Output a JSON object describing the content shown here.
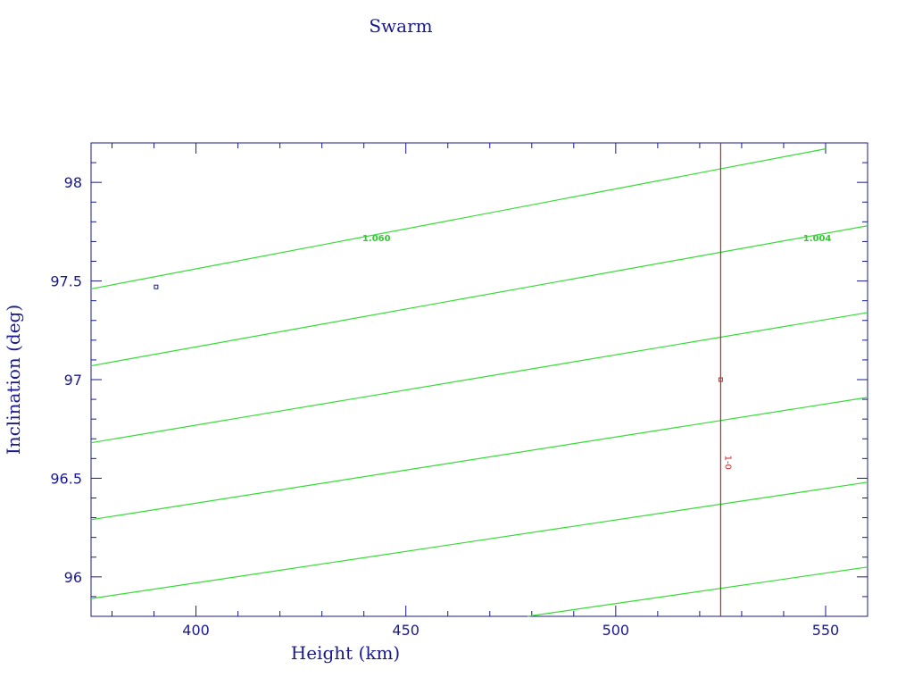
{
  "colors": {
    "axis": "#1a1a8c",
    "contour": "#33dd33",
    "reference": "#cc2222",
    "marker": "#1a1a8c"
  },
  "chart_data": {
    "type": "line",
    "title": "Swarm",
    "xlabel": "Height (km)",
    "ylabel": "Inclination (deg)",
    "xlim": [
      375,
      560
    ],
    "ylim": [
      95.8,
      98.2
    ],
    "xticks": [
      400,
      450,
      500,
      550
    ],
    "yticks": [
      96,
      96.5,
      97,
      97.5,
      98
    ],
    "x_tick_labels": [
      "400",
      "450",
      "500",
      "550"
    ],
    "y_tick_labels": [
      "96",
      "96.5",
      "97",
      "97.5",
      "98"
    ],
    "grid": false,
    "series": [
      {
        "x": [
          375,
          550
        ],
        "y": [
          97.46,
          98.17
        ],
        "label_text": "1.060",
        "label_at": [
          443,
          97.72
        ]
      },
      {
        "x": [
          375,
          560
        ],
        "y": [
          97.07,
          97.78
        ],
        "label_text": "1.004",
        "label_at": [
          548,
          97.72
        ]
      },
      {
        "x": [
          375,
          560
        ],
        "y": [
          96.68,
          97.34
        ]
      },
      {
        "x": [
          375,
          560
        ],
        "y": [
          96.29,
          96.91
        ]
      },
      {
        "x": [
          375,
          560
        ],
        "y": [
          95.89,
          96.48
        ]
      },
      {
        "x": [
          479,
          560
        ],
        "y": [
          95.8,
          96.05
        ]
      }
    ],
    "reference_line": {
      "x": 525,
      "label": "1-0",
      "label_y": 96.58
    },
    "markers": [
      {
        "x": 390.5,
        "y": 97.47,
        "kind": "point"
      },
      {
        "x": 525,
        "y": 97.0,
        "kind": "reference"
      }
    ]
  }
}
